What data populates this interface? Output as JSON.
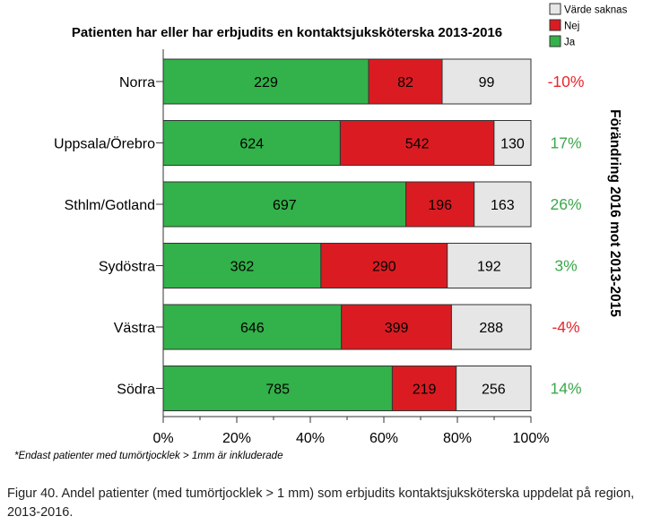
{
  "chart_data": {
    "type": "bar",
    "orientation": "horizontal",
    "stacked": "percent",
    "title": "Patienten har eller har erbjudits en kontaktsjuksköterska 2013-2016",
    "categories": [
      "Norra",
      "Uppsala/Örebro",
      "Sthlm/Gotland",
      "Sydöstra",
      "Västra",
      "Södra"
    ],
    "series": [
      {
        "name": "Ja",
        "color": "#33b14a",
        "values": [
          229,
          624,
          697,
          362,
          646,
          785
        ]
      },
      {
        "name": "Nej",
        "color": "#da1c22",
        "values": [
          82,
          542,
          196,
          290,
          399,
          219
        ]
      },
      {
        "name": "Värde saknas",
        "color": "#e6e6e6",
        "values": [
          99,
          130,
          163,
          192,
          288,
          256
        ]
      }
    ],
    "legend_order": [
      "Värde saknas",
      "Nej",
      "Ja"
    ],
    "legend_position": "top-right",
    "xlim": [
      0,
      100
    ],
    "xticks": [
      "0%",
      "20%",
      "40%",
      "60%",
      "80%",
      "100%"
    ],
    "right_axis_label": "Förändring 2016 mot 2013-2015",
    "changes": [
      {
        "label": "-10%",
        "color": "#e8262c"
      },
      {
        "label": "17%",
        "color": "#3aa84a"
      },
      {
        "label": "26%",
        "color": "#3aa84a"
      },
      {
        "label": "3%",
        "color": "#3aa84a"
      },
      {
        "label": "-4%",
        "color": "#e8262c"
      },
      {
        "label": "14%",
        "color": "#3aa84a"
      }
    ]
  },
  "footnote": "*Endast patienter med tumörtjocklek > 1mm är inkluderade",
  "caption": "Figur 40. Andel patienter (med tumörtjocklek > 1 mm) som erbjudits kontaktsjuksköterska uppdelat på region, 2013-2016."
}
